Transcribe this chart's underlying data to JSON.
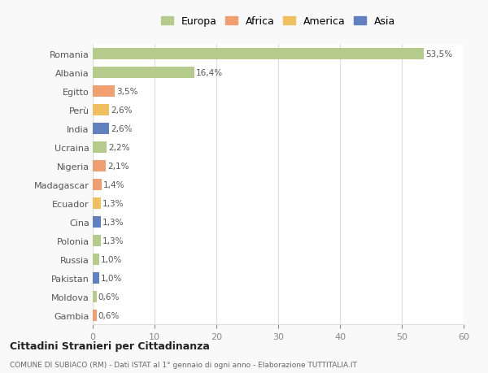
{
  "countries": [
    "Romania",
    "Albania",
    "Egitto",
    "Perù",
    "India",
    "Ucraina",
    "Nigeria",
    "Madagascar",
    "Ecuador",
    "Cina",
    "Polonia",
    "Russia",
    "Pakistan",
    "Moldova",
    "Gambia"
  ],
  "values": [
    53.5,
    16.4,
    3.5,
    2.6,
    2.6,
    2.2,
    2.1,
    1.4,
    1.3,
    1.3,
    1.3,
    1.0,
    1.0,
    0.6,
    0.6
  ],
  "labels": [
    "53,5%",
    "16,4%",
    "3,5%",
    "2,6%",
    "2,6%",
    "2,2%",
    "2,1%",
    "1,4%",
    "1,3%",
    "1,3%",
    "1,3%",
    "1,0%",
    "1,0%",
    "0,6%",
    "0,6%"
  ],
  "colors": [
    "#b5cb8b",
    "#b5cb8b",
    "#f0a070",
    "#f0c060",
    "#6080c0",
    "#b5cb8b",
    "#f0a070",
    "#f0a070",
    "#f0c060",
    "#6080c0",
    "#b5cb8b",
    "#b5cb8b",
    "#6080c0",
    "#b5cb8b",
    "#f0a070"
  ],
  "legend_labels": [
    "Europa",
    "Africa",
    "America",
    "Asia"
  ],
  "legend_colors": [
    "#b5cb8b",
    "#f0a070",
    "#f0c060",
    "#6080c0"
  ],
  "title": "Cittadini Stranieri per Cittadinanza",
  "subtitle": "COMUNE DI SUBIACO (RM) - Dati ISTAT al 1° gennaio di ogni anno - Elaborazione TUTTITALIA.IT",
  "xlim": [
    0,
    60
  ],
  "xticks": [
    0,
    10,
    20,
    30,
    40,
    50,
    60
  ],
  "background_color": "#f9f9f9",
  "bar_background": "#ffffff",
  "grid_color": "#dddddd"
}
